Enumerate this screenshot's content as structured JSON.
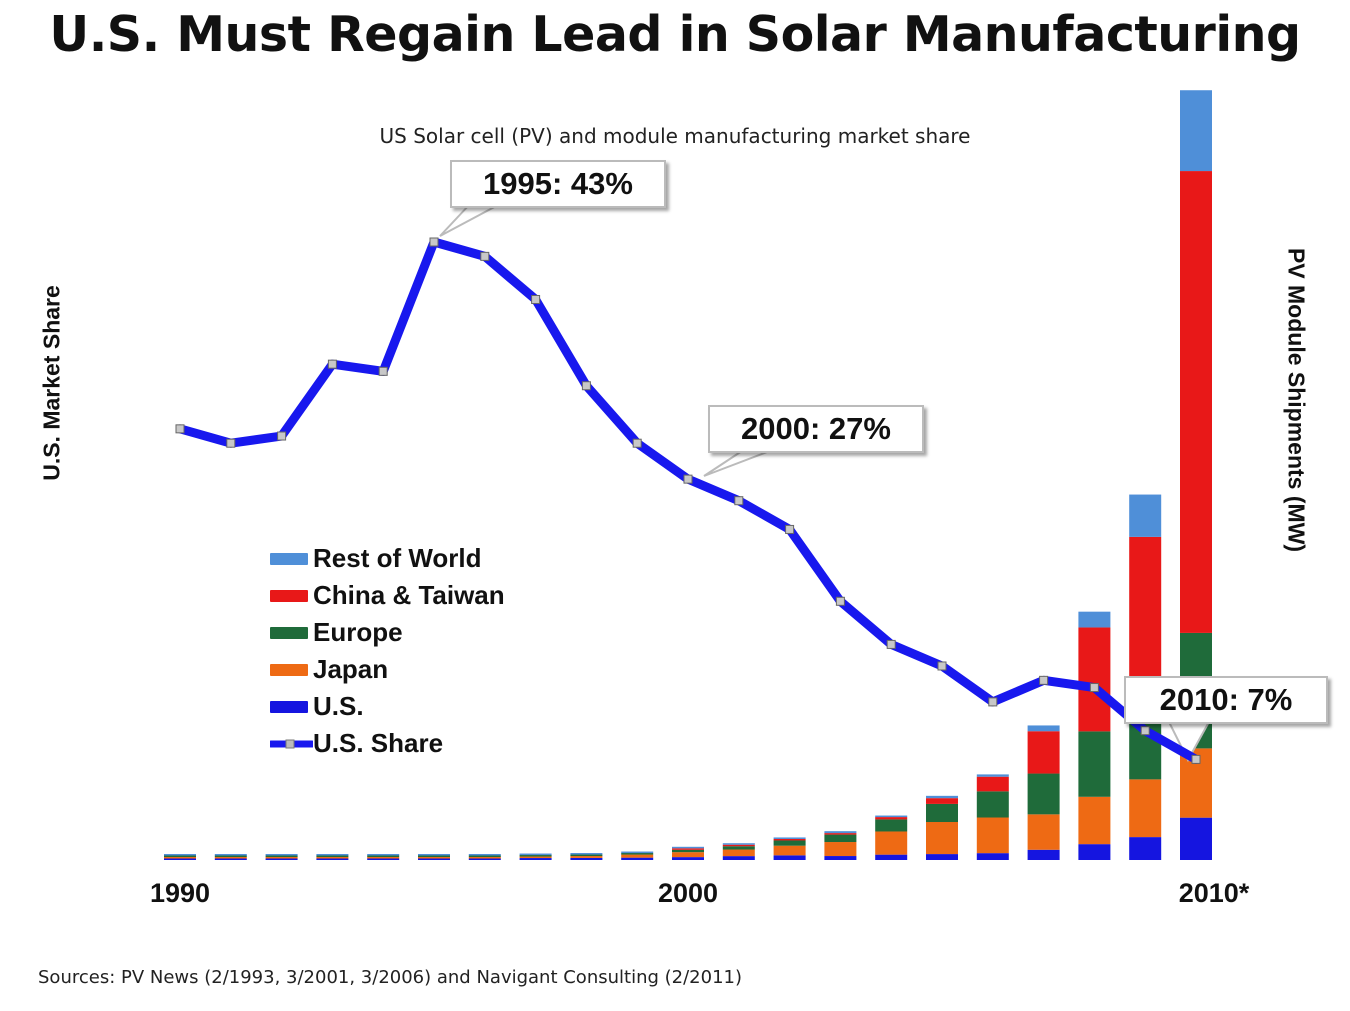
{
  "title": "U.S. Must Regain Lead in Solar Manufacturing",
  "subtitle": "US Solar cell (PV) and module manufacturing market share",
  "source": "Sources: PV News (2/1993, 3/2001, 3/2006) and Navigant Consulting (2/2011)",
  "colors": {
    "rest_of_world": "#4f8fd8",
    "china_taiwan": "#e81818",
    "europe": "#1f6b3a",
    "japan": "#ee6a14",
    "us": "#1515e0",
    "us_share": "#1818ee"
  },
  "legend": [
    {
      "label": "Rest of World",
      "color": "#4f8fd8",
      "kind": "bar"
    },
    {
      "label": "China & Taiwan",
      "color": "#e81818",
      "kind": "bar"
    },
    {
      "label": "Europe",
      "color": "#1f6b3a",
      "kind": "bar"
    },
    {
      "label": "Japan",
      "color": "#ee6a14",
      "kind": "bar"
    },
    {
      "label": "U.S.",
      "color": "#1515e0",
      "kind": "bar"
    },
    {
      "label": "U.S. Share",
      "color": "#1818ee",
      "kind": "line"
    }
  ],
  "annotations": [
    {
      "text": "1995:  43%",
      "year": 1995
    },
    {
      "text": "2000:  27%",
      "year": 2000
    },
    {
      "text": "2010:  7%",
      "year": 2010
    }
  ],
  "chart_data": {
    "type": "bar",
    "stacked": true,
    "xlabel": "",
    "ylabel_left": "U.S. Market Share",
    "ylabel_right": "PV Module Shipments (MW)",
    "x_tick_labels": [
      "1990",
      "2000",
      "2010*"
    ],
    "x": [
      1990,
      1991,
      1992,
      1993,
      1994,
      1995,
      1996,
      1997,
      1998,
      1999,
      2000,
      2001,
      2002,
      2003,
      2004,
      2005,
      2006,
      2007,
      2008,
      2009,
      2010
    ],
    "series": [
      {
        "name": "U.S.",
        "axis": "right",
        "values": [
          15,
          17,
          18,
          23,
          26,
          35,
          39,
          51,
          54,
          61,
          75,
          101,
          121,
          103,
          139,
          154,
          178,
          266,
          412,
          595,
          1100
        ]
      },
      {
        "name": "Japan",
        "axis": "right",
        "values": [
          17,
          19,
          19,
          17,
          16,
          16,
          21,
          35,
          49,
          80,
          129,
          171,
          251,
          364,
          602,
          833,
          926,
          920,
          1230,
          1500,
          1800
        ]
      },
      {
        "name": "Europe",
        "axis": "right",
        "values": [
          10,
          11,
          17,
          17,
          22,
          20,
          19,
          30,
          34,
          40,
          61,
          86,
          135,
          193,
          314,
          470,
          680,
          1060,
          1700,
          2300,
          3000
        ]
      },
      {
        "name": "China & Taiwan",
        "axis": "right",
        "values": [
          0,
          0,
          0,
          0,
          0,
          0,
          0,
          0,
          0,
          0,
          2,
          4,
          10,
          30,
          60,
          150,
          380,
          1100,
          2700,
          4000,
          12000
        ]
      },
      {
        "name": "Rest of World",
        "axis": "right",
        "values": [
          5,
          9,
          4,
          4,
          5,
          7,
          9,
          10,
          20,
          20,
          20,
          20,
          40,
          50,
          40,
          60,
          60,
          150,
          410,
          1100,
          2100
        ]
      },
      {
        "name": "U.S. Share",
        "axis": "left",
        "type": "line",
        "values": [
          30,
          29,
          29.5,
          34.5,
          34,
          43,
          42,
          39,
          33,
          29,
          26.5,
          25,
          23,
          18,
          15,
          13.5,
          11,
          12.5,
          12,
          9,
          7
        ]
      }
    ],
    "ylim_left": [
      0,
      43
    ],
    "ylim_right": [
      0,
      17200
    ],
    "legend_position": "center-left"
  }
}
